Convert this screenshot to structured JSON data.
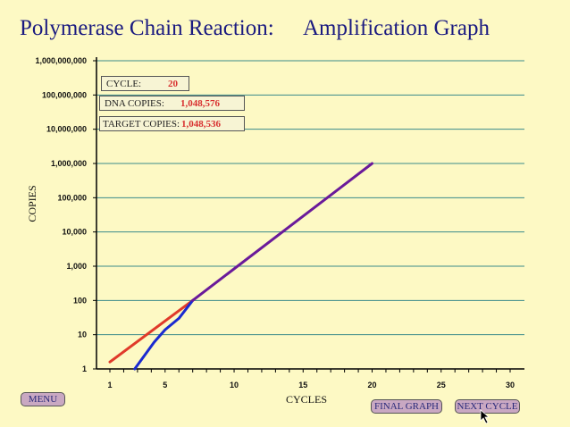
{
  "header": {
    "title_left": "Polymerase Chain Reaction:",
    "title_right": "Amplification Graph"
  },
  "info": {
    "cycle_label": "CYCLE:",
    "cycle_value": "20",
    "dna_label": "DNA COPIES:",
    "dna_value": "1,048,576",
    "target_label": "TARGET COPIES:",
    "target_value": "1,048,536"
  },
  "buttons": {
    "menu": "MENU",
    "final_graph": "FINAL GRAPH",
    "next_cycle": "NEXT CYCLE"
  },
  "chart_data": {
    "type": "line",
    "xlabel": "CYCLES",
    "ylabel": "COPIES",
    "xlim": [
      0,
      30
    ],
    "ylim": [
      1,
      1000000000
    ],
    "log_y": true,
    "grid": true,
    "x_ticks": [
      1,
      5,
      10,
      15,
      20,
      25,
      30
    ],
    "y_tick_labels": [
      "1",
      "10",
      "100",
      "1,000",
      "10,000",
      "100,000",
      "1,000,000",
      "10,000,000",
      "100,000,000",
      "1,000,000,000"
    ],
    "series": [
      {
        "color": "#e03a2a",
        "x": [
          1,
          7
        ],
        "y": [
          1.6,
          100
        ]
      },
      {
        "color": "#1a2ad0",
        "x": [
          2.8,
          4.2,
          5,
          6,
          7
        ],
        "y": [
          1,
          6,
          14,
          30,
          100
        ]
      },
      {
        "color": "#6a1a9a",
        "x": [
          7,
          20
        ],
        "y": [
          100,
          1000000
        ]
      }
    ]
  }
}
